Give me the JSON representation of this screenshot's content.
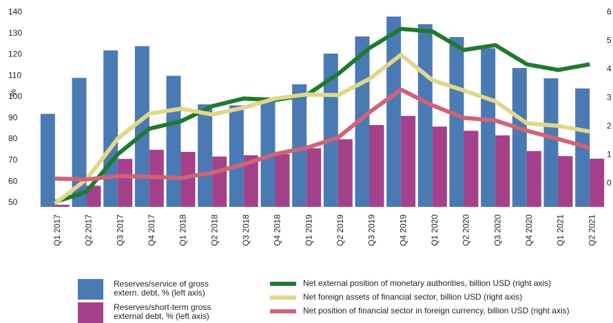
{
  "chart_data": {
    "type": "bar-line",
    "y_label": "%",
    "categories": [
      "Q1 2017",
      "Q2 2017",
      "Q3 2017",
      "Q4 2017",
      "Q1 2018",
      "Q2 2018",
      "Q3 2018",
      "Q4 2018",
      "Q1 2019",
      "Q2 2019",
      "Q3 2019",
      "Q4 2019",
      "Q1 2020",
      "Q2 2020",
      "Q3 2020",
      "Q4 2020",
      "Q1 2021",
      "Q2 2021"
    ],
    "ylim": [
      48,
      140
    ],
    "yticks": [
      50,
      60,
      70,
      80,
      90,
      100,
      110,
      120,
      130,
      140
    ],
    "y2lim": [
      -0.82,
      6
    ],
    "y2ticks": [
      0,
      1,
      2,
      3,
      4,
      5,
      6
    ],
    "series": [
      {
        "name": "Reserves/service of gross extern. debt, % (left axis)",
        "color": "#4a7ab4",
        "kind": "bar",
        "values": [
          92,
          109,
          122,
          124,
          110,
          96.5,
          96,
          99,
          106,
          120.5,
          128.6,
          138,
          134.4,
          128.3,
          123,
          113.7,
          108.8,
          104
        ]
      },
      {
        "name": "Reserves/short-term gross external debt, % (left axis)",
        "color": "#a4418a",
        "kind": "bar",
        "values": [
          49,
          58,
          70.7,
          75,
          74,
          71.8,
          72.4,
          73,
          75.7,
          80,
          86.7,
          91,
          86,
          84,
          81.8,
          74.4,
          72,
          70.8
        ]
      },
      {
        "name": "Net external position of monetary authorities, billion USD (right axis)",
        "color": "#1f7a2e",
        "kind": "line",
        "axis": "y2",
        "values": [
          -0.65,
          -0.29,
          1.03,
          1.92,
          2.18,
          2.71,
          2.98,
          2.93,
          3.1,
          3.84,
          4.75,
          5.42,
          5.33,
          4.68,
          4.85,
          4.18,
          3.98,
          4.18
        ]
      },
      {
        "name": "Net foreign assets of financial sector,  billion USD (right axis)",
        "color": "#e0d78a",
        "kind": "line",
        "axis": "y2",
        "values": [
          -0.7,
          0.14,
          1.58,
          2.45,
          2.62,
          2.42,
          2.66,
          2.98,
          3.12,
          3.1,
          3.67,
          4.51,
          3.62,
          3.26,
          2.88,
          2.11,
          2.02,
          1.82
        ]
      },
      {
        "name": "Net position of financial sector in foreign currency, billion USD (right axis)",
        "color": "#cf6378",
        "kind": "line",
        "axis": "y2",
        "values": [
          0.17,
          0.14,
          0.26,
          0.24,
          0.19,
          0.38,
          0.67,
          1.03,
          1.25,
          1.61,
          2.5,
          3.29,
          2.74,
          2.3,
          2.21,
          1.85,
          1.56,
          1.25
        ]
      }
    ]
  }
}
